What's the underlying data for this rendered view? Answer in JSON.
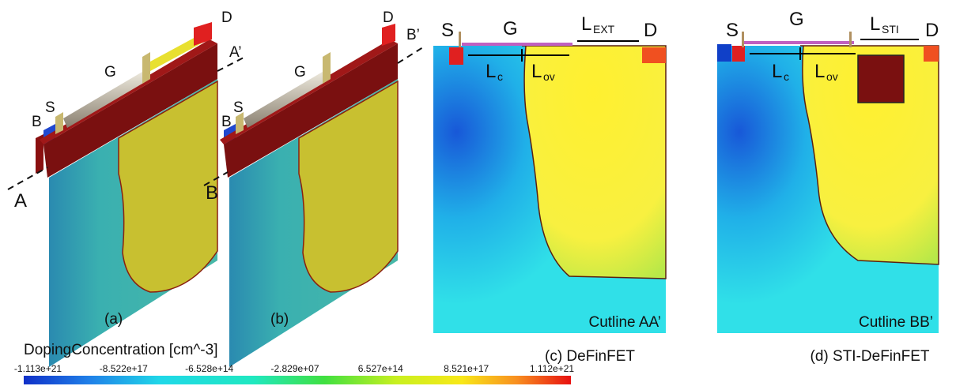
{
  "panel_a": {
    "A": "A",
    "A_prime": "A’",
    "B": "B",
    "S": "S",
    "G": "G",
    "D": "D",
    "caption": "(a)"
  },
  "panel_b": {
    "B": "B",
    "B_prime": "B’",
    "Bulk": "B",
    "S": "S",
    "G": "G",
    "D": "D",
    "caption": "(b)"
  },
  "panel_c": {
    "S": "S",
    "G": "G",
    "D": "D",
    "L_ext": {
      "main": "L",
      "sub": "EXT"
    },
    "L_c": {
      "main": "L",
      "sub": "c"
    },
    "L_ov": {
      "main": "L",
      "sub": "ov"
    },
    "cutline": "Cutline AA’",
    "caption": "(c) DeFinFET"
  },
  "panel_d": {
    "S": "S",
    "G": "G",
    "D": "D",
    "L_sti": {
      "main": "L",
      "sub": "STI"
    },
    "L_c": {
      "main": "L",
      "sub": "c"
    },
    "L_ov": {
      "main": "L",
      "sub": "ov"
    },
    "cutline": "Cutline BB’",
    "caption": "(d) STI-DeFinFET"
  },
  "colorbar": {
    "title": "DopingConcentration [cm^-3]",
    "ticks": [
      "-1.113e+21",
      "-8.522e+17",
      "-6.528e+14",
      "-2.829e+07",
      "6.527e+14",
      "8.521e+17",
      "1.112e+21"
    ]
  }
}
